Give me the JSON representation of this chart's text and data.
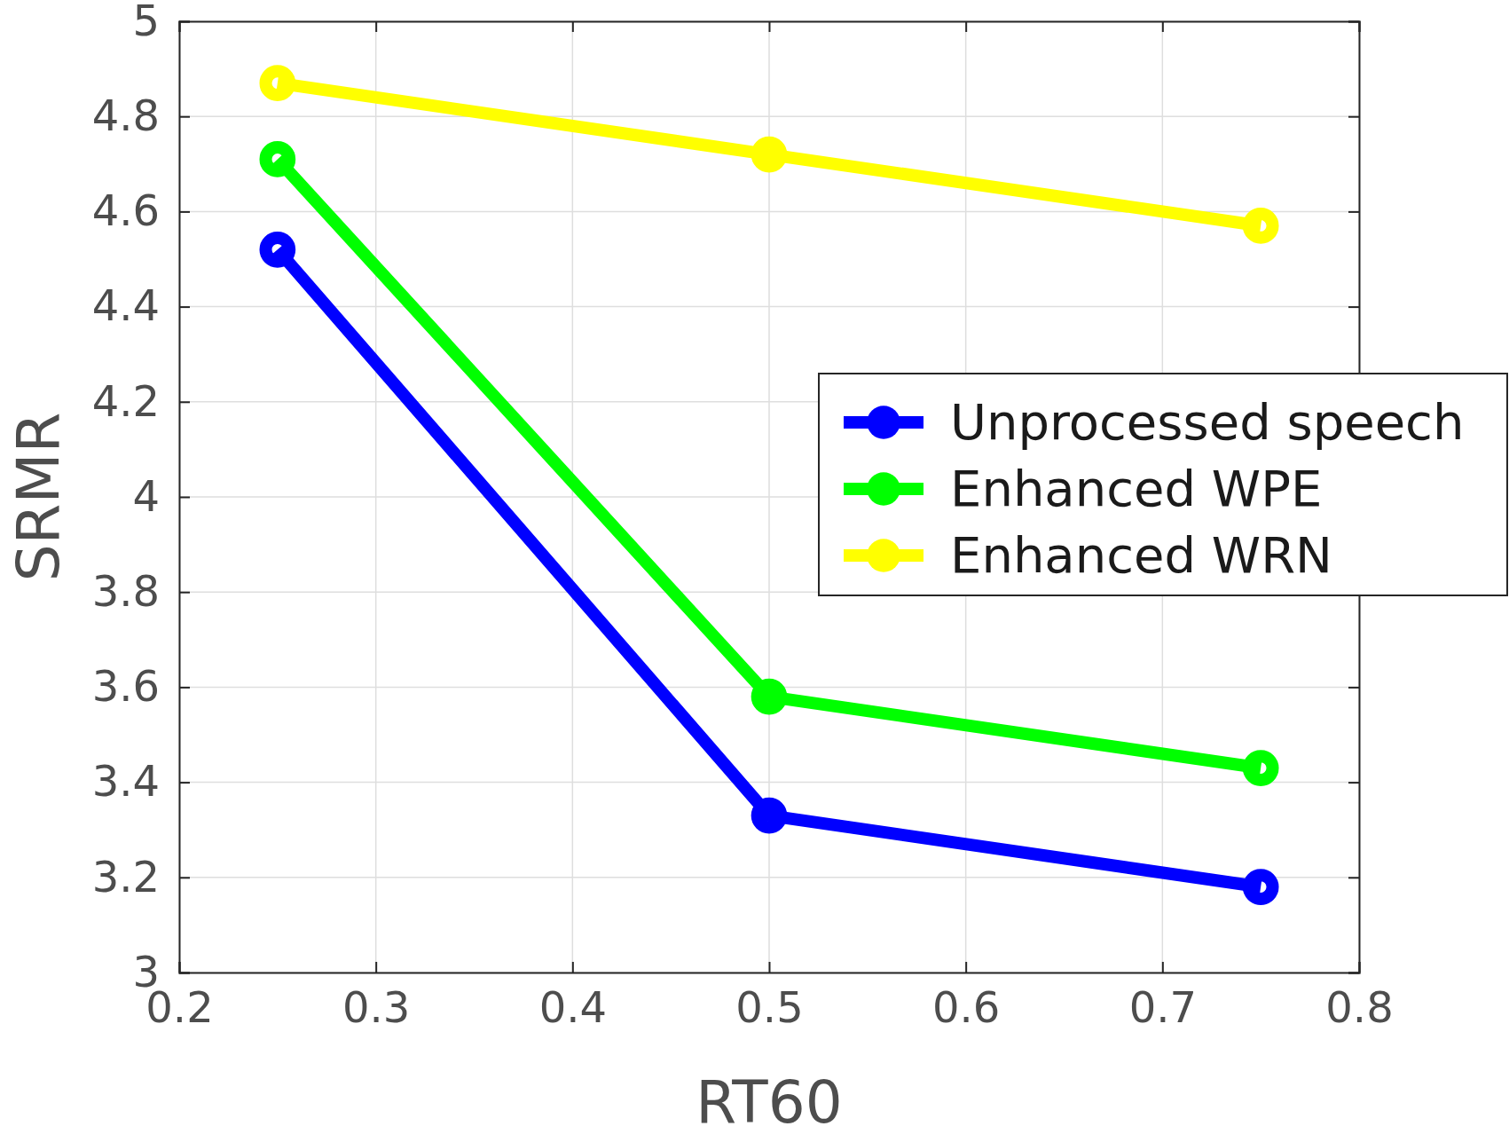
{
  "chart_data": {
    "type": "line",
    "xlabel": "RT60",
    "ylabel": "SRMR",
    "x": [
      0.25,
      0.5,
      0.75
    ],
    "series": [
      {
        "name": "Unprocessed speech",
        "color": "#0000ff",
        "values": [
          4.52,
          3.33,
          3.18
        ]
      },
      {
        "name": "Enhanced WPE",
        "color": "#00ff00",
        "values": [
          4.71,
          3.58,
          3.43
        ]
      },
      {
        "name": "Enhanced WRN",
        "color": "#ffff00",
        "values": [
          4.87,
          4.72,
          4.57
        ]
      }
    ],
    "xlim": [
      0.2,
      0.8
    ],
    "xticks": [
      0.2,
      0.3,
      0.4,
      0.5,
      0.6,
      0.7,
      0.8
    ],
    "ylim": [
      3,
      5
    ],
    "yticks": [
      3,
      3.2,
      3.4,
      3.6,
      3.8,
      4,
      4.2,
      4.4,
      4.6,
      4.8,
      5
    ],
    "grid": true,
    "legend": "right",
    "marker": "circle",
    "line_style": "solid"
  }
}
